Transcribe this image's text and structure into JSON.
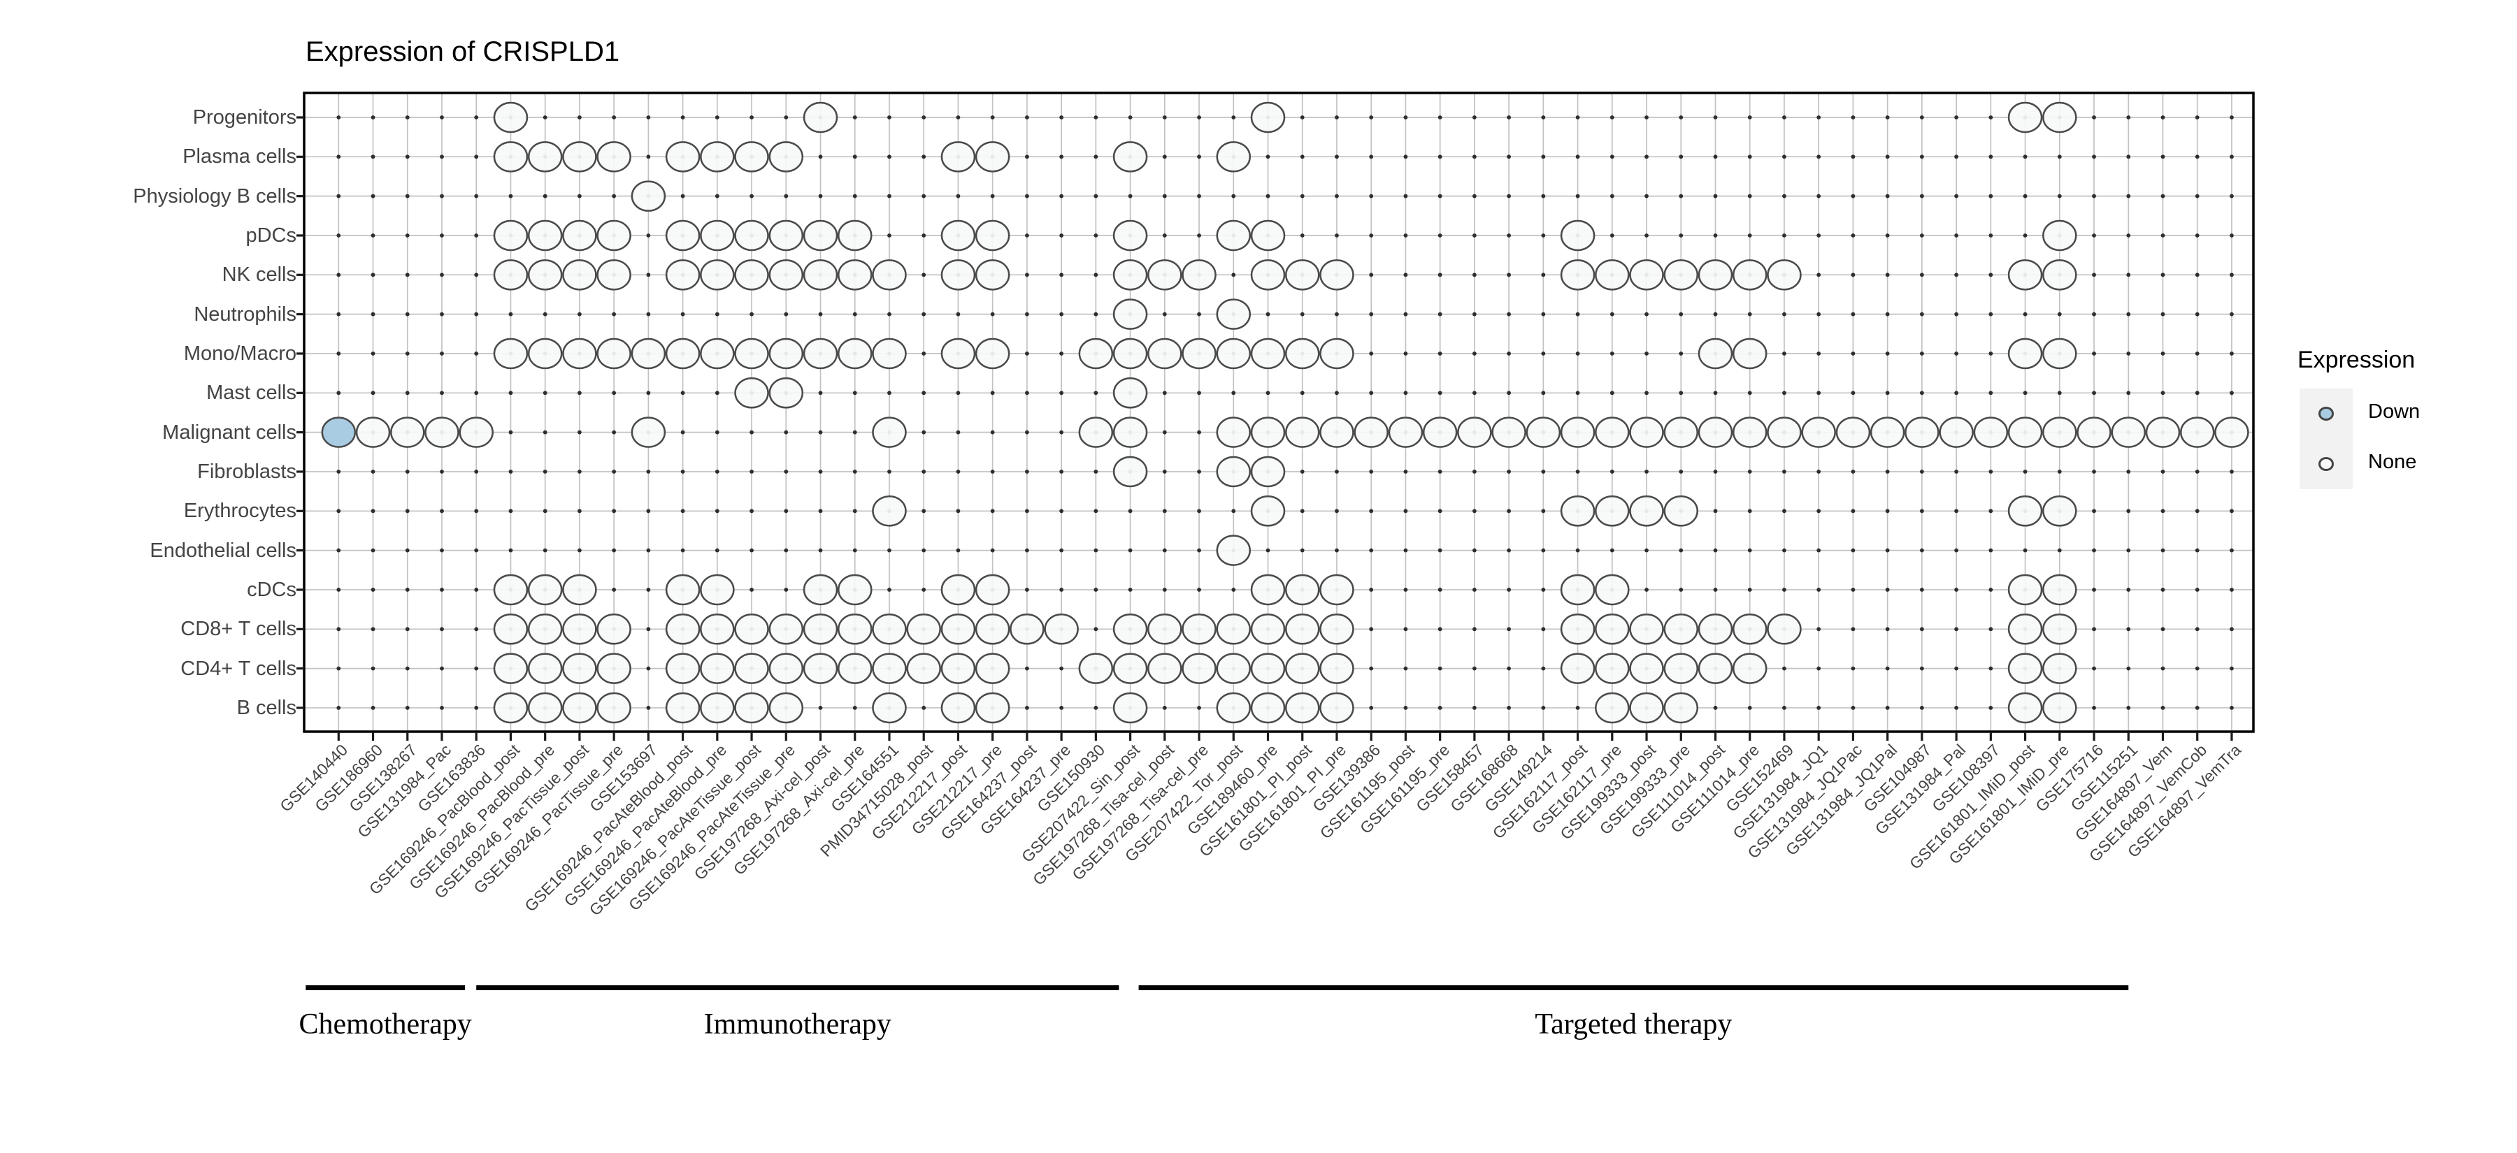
{
  "chart_data": {
    "type": "dot-matrix",
    "title": "Expression of CRISPLD1",
    "legend": {
      "title": "Expression",
      "items": [
        {
          "label": "Down",
          "fill": "#a9cce3"
        },
        {
          "label": "None",
          "fill": "#f7f8f9"
        }
      ],
      "position": "right"
    },
    "rows": [
      "Progenitors",
      "Plasma cells",
      "Physiology B cells",
      "pDCs",
      "NK cells",
      "Neutrophils",
      "Mono/Macro",
      "Mast cells",
      "Malignant cells",
      "Fibroblasts",
      "Erythrocytes",
      "Endothelial cells",
      "cDCs",
      "CD8+ T cells",
      "CD4+ T cells",
      "B cells"
    ],
    "columns": [
      "GSE140440",
      "GSE186960",
      "GSE138267",
      "GSE131984_Pac",
      "GSE163836",
      "GSE169246_PacBlood_post",
      "GSE169246_PacBlood_pre",
      "GSE169246_PacTissue_post",
      "GSE169246_PacTissue_pre",
      "GSE153697",
      "GSE169246_PacAteBlood_post",
      "GSE169246_PacAteBlood_pre",
      "GSE169246_PacAteTissue_post",
      "GSE169246_PacAteTissue_pre",
      "GSE197268_Axi-cel_post",
      "GSE197268_Axi-cel_pre",
      "GSE164551",
      "PMID34715028_post",
      "GSE212217_post",
      "GSE212217_pre",
      "GSE164237_post",
      "GSE164237_pre",
      "GSE150930",
      "GSE207422_Sin_post",
      "GSE197268_Tisa-cel_post",
      "GSE197268_Tisa-cel_pre",
      "GSE207422_Tor_post",
      "GSE189460_pre",
      "GSE161801_PI_post",
      "GSE161801_PI_pre",
      "GSE139386",
      "GSE161195_post",
      "GSE161195_pre",
      "GSE158457",
      "GSE168668",
      "GSE149214",
      "GSE162117_post",
      "GSE162117_pre",
      "GSE199333_post",
      "GSE199333_pre",
      "GSE111014_post",
      "GSE111014_pre",
      "GSE152469",
      "GSE131984_JQ1",
      "GSE131984_JQ1Pac",
      "GSE131984_JQ1Pal",
      "GSE104987",
      "GSE131984_Pal",
      "GSE108397",
      "GSE161801_IMiD_post",
      "GSE161801_IMiD_pre",
      "GSE175716",
      "GSE115251",
      "GSE164897_Vem",
      "GSE164897_VemCob",
      "GSE164897_VemTra"
    ],
    "cell_codes": {
      ".": "no circle",
      "o": "None",
      "d": "Down"
    },
    "matrix": [
      ".....o........o............o.....................oo.....",
      ".....oooo.oooo....oo...o..o.............................",
      ".........o..............................................",
      ".....oooo.oooooo..oo...o..oo........o.............o.....",
      ".....oooo.ooooooo.oo...ooo.ooo......ooooooo......oo.....",
      ".......................o..o.............................",
      ".....oooooooooooo.oo..oooooooo..........oo.......oo.....",
      "............oo.........o................................",
      "doooo....o......o.....oo..oooooooooooooooooooooooooooooo",
      ".......................o..oo............................",
      "................o..........o........oooo.........oo.....",
      "..........................o.............................",
      ".....ooo..oo..oo..oo.......ooo......oo...........oo.....",
      ".....oooo.oooooooooooo.ooooooo......ooooooo......oo.....",
      ".....oooo.oooooooooo..oooooooo......oooooo.......oo.....",
      ".....oooo.oooo..o.oo...o..oooo.......ooo.........oo....."
    ],
    "groups": [
      {
        "label": "Chemotherapy",
        "col_start": 0,
        "col_end": 3,
        "pad_left": -47,
        "pad_right": 33
      },
      {
        "label": "Immunotherapy",
        "col_start": 4,
        "col_end": 22,
        "pad_left": 0,
        "pad_right": 33
      },
      {
        "label": "Targeted therapy",
        "col_start": 23,
        "col_end": 52,
        "pad_left": 12,
        "pad_right": 0
      }
    ],
    "colors": {
      "down": "#a9cce3",
      "none_fill": "#f7f8f9",
      "circle_stroke": "#4a4a4a",
      "grid": "#c2c2c2",
      "grid_dot": "#2e2e2e",
      "frame": "#000000",
      "axis_text": "#444444"
    },
    "layout_hints": {
      "grid": true,
      "x_tick_rotation": -45,
      "legend_position": "right"
    }
  }
}
